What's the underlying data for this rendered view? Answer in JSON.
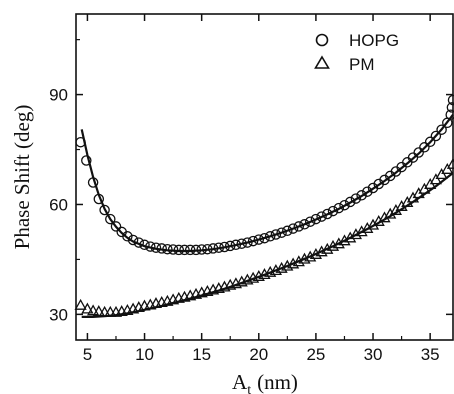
{
  "chart_data": {
    "type": "scatter",
    "title": "",
    "xlabel": "A",
    "xlabel_subscript": "t",
    "xlabel_unit": "(nm)",
    "ylabel": "Phase Shift (deg)",
    "xlim": [
      4,
      37
    ],
    "ylim": [
      23,
      112
    ],
    "x_ticks": [
      5,
      10,
      15,
      20,
      25,
      30,
      35
    ],
    "y_ticks": [
      30,
      60,
      90
    ],
    "legend_position": "top-right",
    "grid": false,
    "series": [
      {
        "name": "HOPG",
        "marker": "circle",
        "points": [
          [
            4.4,
            77.0
          ],
          [
            4.9,
            72.0
          ],
          [
            5.5,
            66.0
          ],
          [
            6.0,
            61.5
          ],
          [
            6.5,
            58.5
          ],
          [
            7.0,
            56.0
          ],
          [
            7.5,
            54.0
          ],
          [
            8.0,
            52.5
          ],
          [
            8.5,
            51.3
          ],
          [
            9.0,
            50.3
          ],
          [
            9.5,
            49.6
          ],
          [
            10.0,
            49.0
          ],
          [
            10.5,
            48.5
          ],
          [
            11.0,
            48.2
          ],
          [
            11.5,
            48.0
          ],
          [
            12.0,
            47.8
          ],
          [
            12.5,
            47.7
          ],
          [
            13.0,
            47.6
          ],
          [
            13.5,
            47.6
          ],
          [
            14.0,
            47.6
          ],
          [
            14.5,
            47.6
          ],
          [
            15.0,
            47.7
          ],
          [
            15.5,
            47.8
          ],
          [
            16.0,
            48.0
          ],
          [
            16.5,
            48.2
          ],
          [
            17.0,
            48.4
          ],
          [
            17.5,
            48.7
          ],
          [
            18.0,
            49.0
          ],
          [
            18.5,
            49.3
          ],
          [
            19.0,
            49.6
          ],
          [
            19.5,
            50.0
          ],
          [
            20.0,
            50.4
          ],
          [
            20.5,
            50.8
          ],
          [
            21.0,
            51.3
          ],
          [
            21.5,
            51.8
          ],
          [
            22.0,
            52.3
          ],
          [
            22.5,
            52.8
          ],
          [
            23.0,
            53.4
          ],
          [
            23.5,
            54.0
          ],
          [
            24.0,
            54.6
          ],
          [
            24.5,
            55.3
          ],
          [
            25.0,
            56.0
          ],
          [
            25.5,
            56.7
          ],
          [
            26.0,
            57.4
          ],
          [
            26.5,
            58.2
          ],
          [
            27.0,
            59.0
          ],
          [
            27.5,
            59.8
          ],
          [
            28.0,
            60.7
          ],
          [
            28.5,
            61.6
          ],
          [
            29.0,
            62.5
          ],
          [
            29.5,
            63.5
          ],
          [
            30.0,
            64.5
          ],
          [
            30.5,
            65.6
          ],
          [
            31.0,
            66.7
          ],
          [
            31.5,
            67.8
          ],
          [
            32.0,
            69.0
          ],
          [
            32.5,
            70.2
          ],
          [
            33.0,
            71.5
          ],
          [
            33.5,
            72.8
          ],
          [
            34.0,
            74.2
          ],
          [
            34.5,
            75.6
          ],
          [
            35.0,
            77.1
          ],
          [
            35.5,
            78.7
          ],
          [
            36.0,
            80.4
          ],
          [
            36.5,
            82.3
          ],
          [
            36.8,
            84.5
          ],
          [
            36.9,
            86.5
          ],
          [
            37.0,
            88.5
          ]
        ]
      },
      {
        "name": "PM",
        "marker": "triangle",
        "points": [
          [
            4.4,
            32.5
          ],
          [
            5.0,
            31.5
          ],
          [
            5.5,
            31.0
          ],
          [
            6.0,
            30.8
          ],
          [
            6.5,
            30.6
          ],
          [
            7.0,
            30.6
          ],
          [
            7.5,
            30.6
          ],
          [
            8.0,
            30.8
          ],
          [
            8.5,
            31.1
          ],
          [
            9.0,
            31.5
          ],
          [
            9.5,
            31.9
          ],
          [
            10.0,
            32.3
          ],
          [
            10.5,
            32.6
          ],
          [
            11.0,
            33.0
          ],
          [
            11.5,
            33.3
          ],
          [
            12.0,
            33.6
          ],
          [
            12.5,
            34.0
          ],
          [
            13.0,
            34.4
          ],
          [
            13.5,
            34.7
          ],
          [
            14.0,
            35.1
          ],
          [
            14.5,
            35.5
          ],
          [
            15.0,
            35.9
          ],
          [
            15.5,
            36.3
          ],
          [
            16.0,
            36.7
          ],
          [
            16.5,
            37.1
          ],
          [
            17.0,
            37.5
          ],
          [
            17.5,
            38.0
          ],
          [
            18.0,
            38.4
          ],
          [
            18.5,
            38.9
          ],
          [
            19.0,
            39.4
          ],
          [
            19.5,
            39.9
          ],
          [
            20.0,
            40.4
          ],
          [
            20.5,
            40.9
          ],
          [
            21.0,
            41.5
          ],
          [
            21.5,
            42.0
          ],
          [
            22.0,
            42.6
          ],
          [
            22.5,
            43.2
          ],
          [
            23.0,
            43.8
          ],
          [
            23.5,
            44.4
          ],
          [
            24.0,
            45.1
          ],
          [
            24.5,
            45.7
          ],
          [
            25.0,
            46.4
          ],
          [
            25.5,
            47.1
          ],
          [
            26.0,
            47.8
          ],
          [
            26.5,
            48.6
          ],
          [
            27.0,
            49.3
          ],
          [
            27.5,
            50.1
          ],
          [
            28.0,
            50.9
          ],
          [
            28.5,
            51.8
          ],
          [
            29.0,
            52.6
          ],
          [
            29.5,
            53.5
          ],
          [
            30.0,
            54.4
          ],
          [
            30.5,
            55.4
          ],
          [
            31.0,
            56.4
          ],
          [
            31.5,
            57.4
          ],
          [
            32.0,
            58.4
          ],
          [
            32.5,
            59.5
          ],
          [
            33.0,
            60.6
          ],
          [
            33.5,
            61.8
          ],
          [
            34.0,
            63.0
          ],
          [
            34.5,
            64.2
          ],
          [
            35.0,
            65.5
          ],
          [
            35.5,
            66.8
          ],
          [
            36.0,
            68.2
          ],
          [
            36.5,
            69.6
          ],
          [
            37.0,
            71.0
          ]
        ]
      }
    ],
    "fit_lines": [
      {
        "series": "HOPG",
        "points": [
          [
            4.5,
            80.5
          ],
          [
            5.0,
            73.5
          ],
          [
            5.5,
            67.5
          ],
          [
            6.0,
            62.6
          ],
          [
            6.5,
            58.8
          ],
          [
            7.0,
            56.0
          ],
          [
            7.5,
            53.9
          ],
          [
            8.0,
            52.2
          ],
          [
            8.5,
            50.9
          ],
          [
            9.0,
            49.9
          ],
          [
            10.0,
            48.6
          ],
          [
            11.0,
            47.9
          ],
          [
            12.0,
            47.5
          ],
          [
            13.0,
            47.3
          ],
          [
            14.0,
            47.3
          ],
          [
            15.0,
            47.5
          ],
          [
            16.0,
            47.8
          ],
          [
            17.0,
            48.3
          ],
          [
            18.0,
            48.9
          ],
          [
            19.0,
            49.6
          ],
          [
            20.0,
            50.4
          ],
          [
            21.0,
            51.3
          ],
          [
            22.0,
            52.3
          ],
          [
            23.0,
            53.4
          ],
          [
            24.0,
            54.6
          ],
          [
            25.0,
            55.9
          ],
          [
            26.0,
            57.3
          ],
          [
            27.0,
            58.8
          ],
          [
            28.0,
            60.5
          ],
          [
            29.0,
            62.3
          ],
          [
            30.0,
            64.3
          ],
          [
            31.0,
            66.4
          ],
          [
            32.0,
            68.7
          ],
          [
            33.0,
            71.2
          ],
          [
            34.0,
            73.9
          ],
          [
            35.0,
            77.0
          ],
          [
            36.0,
            80.5
          ],
          [
            37.0,
            84.5
          ]
        ]
      },
      {
        "series": "PM",
        "points": [
          [
            4.5,
            29.3
          ],
          [
            5.5,
            29.3
          ],
          [
            6.5,
            29.5
          ],
          [
            7.5,
            29.8
          ],
          [
            8.5,
            30.3
          ],
          [
            9.5,
            30.9
          ],
          [
            10.5,
            31.6
          ],
          [
            11.5,
            32.3
          ],
          [
            12.5,
            33.1
          ],
          [
            13.5,
            33.9
          ],
          [
            14.5,
            34.7
          ],
          [
            15.5,
            35.6
          ],
          [
            16.5,
            36.5
          ],
          [
            17.5,
            37.5
          ],
          [
            18.5,
            38.6
          ],
          [
            19.5,
            39.7
          ],
          [
            20.5,
            40.8
          ],
          [
            21.5,
            42.0
          ],
          [
            22.5,
            43.2
          ],
          [
            23.5,
            44.5
          ],
          [
            24.5,
            45.8
          ],
          [
            25.5,
            47.2
          ],
          [
            26.5,
            48.6
          ],
          [
            27.5,
            50.1
          ],
          [
            28.5,
            51.7
          ],
          [
            29.5,
            53.3
          ],
          [
            30.5,
            55.0
          ],
          [
            31.5,
            56.8
          ],
          [
            32.5,
            58.7
          ],
          [
            33.5,
            60.7
          ],
          [
            34.5,
            62.8
          ],
          [
            35.5,
            65.0
          ],
          [
            36.5,
            67.4
          ],
          [
            37.0,
            68.6
          ]
        ]
      }
    ],
    "colors": {
      "axis": "#111111",
      "marker": "#111111",
      "fit": "#111111"
    }
  }
}
